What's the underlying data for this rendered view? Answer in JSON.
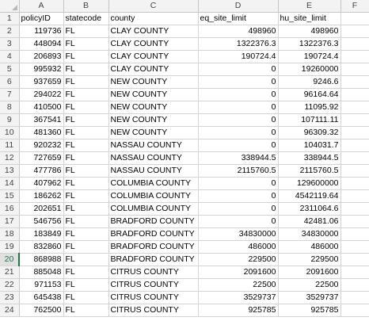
{
  "sheet": {
    "column_headers": [
      "A",
      "B",
      "C",
      "D",
      "E",
      "F"
    ],
    "selected_row": 20,
    "header_row": [
      "policyID",
      "statecode",
      "county",
      "eq_site_limit",
      "hu_site_limit",
      ""
    ],
    "rows": [
      {
        "num": "1",
        "cells": [
          "policyID",
          "statecode",
          "county",
          "eq_site_limit",
          "hu_site_limit",
          ""
        ]
      },
      {
        "num": "2",
        "cells": [
          "119736",
          "FL",
          "CLAY COUNTY",
          "498960",
          "498960",
          ""
        ]
      },
      {
        "num": "3",
        "cells": [
          "448094",
          "FL",
          "CLAY COUNTY",
          "1322376.3",
          "1322376.3",
          ""
        ]
      },
      {
        "num": "4",
        "cells": [
          "206893",
          "FL",
          "CLAY COUNTY",
          "190724.4",
          "190724.4",
          ""
        ]
      },
      {
        "num": "5",
        "cells": [
          "995932",
          "FL",
          "CLAY COUNTY",
          "0",
          "19260000",
          ""
        ]
      },
      {
        "num": "6",
        "cells": [
          "937659",
          "FL",
          "NEW COUNTY",
          "0",
          "9246.6",
          ""
        ]
      },
      {
        "num": "7",
        "cells": [
          "294022",
          "FL",
          "NEW COUNTY",
          "0",
          "96164.64",
          ""
        ]
      },
      {
        "num": "8",
        "cells": [
          "410500",
          "FL",
          "NEW COUNTY",
          "0",
          "11095.92",
          ""
        ]
      },
      {
        "num": "9",
        "cells": [
          "367541",
          "FL",
          "NEW COUNTY",
          "0",
          "107111.11",
          ""
        ]
      },
      {
        "num": "10",
        "cells": [
          "481360",
          "FL",
          "NEW COUNTY",
          "0",
          "96309.32",
          ""
        ]
      },
      {
        "num": "11",
        "cells": [
          "920232",
          "FL",
          "NASSAU COUNTY",
          "0",
          "104031.7",
          ""
        ]
      },
      {
        "num": "12",
        "cells": [
          "727659",
          "FL",
          "NASSAU COUNTY",
          "338944.5",
          "338944.5",
          ""
        ]
      },
      {
        "num": "13",
        "cells": [
          "477786",
          "FL",
          "NASSAU COUNTY",
          "2115760.5",
          "2115760.5",
          ""
        ]
      },
      {
        "num": "14",
        "cells": [
          "407962",
          "FL",
          "COLUMBIA COUNTY",
          "0",
          "129600000",
          ""
        ]
      },
      {
        "num": "15",
        "cells": [
          "186262",
          "FL",
          "COLUMBIA COUNTY",
          "0",
          "4542119.64",
          ""
        ]
      },
      {
        "num": "16",
        "cells": [
          "202651",
          "FL",
          "COLUMBIA COUNTY",
          "0",
          "2311064.6",
          ""
        ]
      },
      {
        "num": "17",
        "cells": [
          "546756",
          "FL",
          "BRADFORD COUNTY",
          "0",
          "42481.06",
          ""
        ]
      },
      {
        "num": "18",
        "cells": [
          "183849",
          "FL",
          "BRADFORD COUNTY",
          "34830000",
          "34830000",
          ""
        ]
      },
      {
        "num": "19",
        "cells": [
          "832860",
          "FL",
          "BRADFORD COUNTY",
          "486000",
          "486000",
          ""
        ]
      },
      {
        "num": "20",
        "cells": [
          "868988",
          "FL",
          "BRADFORD COUNTY",
          "229500",
          "229500",
          ""
        ]
      },
      {
        "num": "21",
        "cells": [
          "885048",
          "FL",
          "CITRUS COUNTY",
          "2091600",
          "2091600",
          ""
        ]
      },
      {
        "num": "22",
        "cells": [
          "971153",
          "FL",
          "CITRUS COUNTY",
          "22500",
          "22500",
          ""
        ]
      },
      {
        "num": "23",
        "cells": [
          "645438",
          "FL",
          "CITRUS COUNTY",
          "3529737",
          "3529737",
          ""
        ]
      },
      {
        "num": "24",
        "cells": [
          "762500",
          "FL",
          "CITRUS COUNTY",
          "925785",
          "925785",
          ""
        ]
      }
    ]
  }
}
